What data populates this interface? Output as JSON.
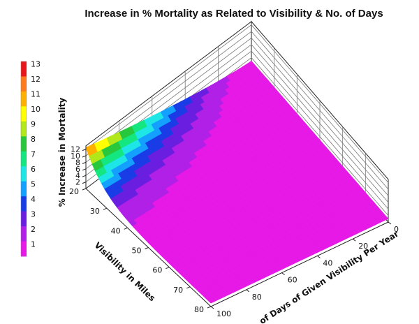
{
  "chart_data": {
    "type": "surface3d",
    "title": "Increase in % Mortality as Related to Visibility & No. of Days",
    "xlabel": "No. of Days of Given Visibility Per Year",
    "ylabel": "Visibility in Miles",
    "zlabel": "% Increase in Mortality",
    "x_ticks": [
      0,
      20,
      40,
      60,
      80,
      100
    ],
    "y_ticks": [
      20,
      30,
      40,
      50,
      60,
      70,
      80
    ],
    "z_ticks": [
      2,
      4,
      6,
      8,
      10,
      12
    ],
    "xlim": [
      0,
      100
    ],
    "ylim": [
      20,
      80
    ],
    "zlim": [
      0,
      13
    ],
    "colorbar": {
      "levels": [
        "13",
        "12",
        "11",
        "10",
        "9",
        "8",
        "7",
        "6",
        "5",
        "4",
        "3",
        "2",
        "1"
      ],
      "colors": [
        "#e8161b",
        "#ff7a1a",
        "#ffb000",
        "#ffff00",
        "#b2e81a",
        "#28c83c",
        "#14e680",
        "#1ee6e6",
        "#14a0ff",
        "#1a3ce6",
        "#6a1ee0",
        "#b020e6",
        "#e619e6"
      ]
    },
    "surface": {
      "description_points": [
        {
          "days": 100,
          "visibility": 20,
          "increase": 12.5
        },
        {
          "days": 0,
          "visibility": 20,
          "increase": 2.2
        },
        {
          "days": 100,
          "visibility": 30,
          "increase": 6.0
        },
        {
          "days": 100,
          "visibility": 40,
          "increase": 2.2
        },
        {
          "days": 100,
          "visibility": 50,
          "increase": 1.2
        },
        {
          "days": 100,
          "visibility": 80,
          "increase": 1.0
        }
      ]
    }
  }
}
